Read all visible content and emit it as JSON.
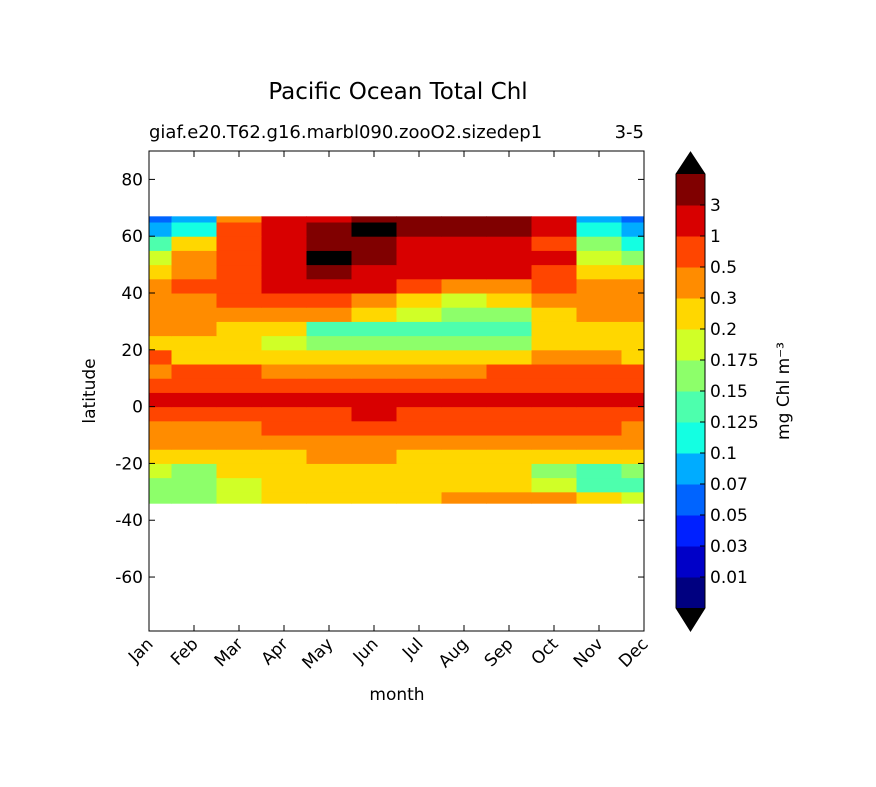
{
  "chart_data": {
    "type": "contour",
    "title": "Pacific Ocean Total Chl",
    "subtitle": "giaf.e20.T62.g16.marbl090.zooO2.sizedep1",
    "subtitle_right": "3-5",
    "xlabel": "month",
    "ylabel": "latitude",
    "categories": [
      "Jan",
      "Feb",
      "Mar",
      "Apr",
      "May",
      "Jun",
      "Jul",
      "Aug",
      "Sep",
      "Oct",
      "Nov",
      "Dec"
    ],
    "ylim": [
      -79,
      90
    ],
    "yticks": [
      -60,
      -40,
      -20,
      0,
      20,
      40,
      60,
      80
    ],
    "lat_edges": [
      -34,
      -30,
      -25,
      -20,
      -15,
      -10,
      -5,
      0,
      5,
      10,
      15,
      20,
      25,
      30,
      35,
      40,
      45,
      50,
      55,
      60,
      65,
      67
    ],
    "z": [
      [
        0.15,
        0.15,
        0.175,
        0.2,
        0.2,
        0.2,
        0.2,
        0.3,
        0.3,
        0.3,
        0.2,
        0.175
      ],
      [
        0.15,
        0.15,
        0.175,
        0.2,
        0.2,
        0.2,
        0.2,
        0.2,
        0.2,
        0.175,
        0.125,
        0.125
      ],
      [
        0.175,
        0.15,
        0.2,
        0.2,
        0.2,
        0.2,
        0.2,
        0.2,
        0.2,
        0.15,
        0.125,
        0.15
      ],
      [
        0.2,
        0.2,
        0.2,
        0.2,
        0.3,
        0.3,
        0.2,
        0.2,
        0.2,
        0.2,
        0.2,
        0.2
      ],
      [
        0.3,
        0.3,
        0.3,
        0.3,
        0.3,
        0.3,
        0.3,
        0.3,
        0.3,
        0.3,
        0.3,
        0.3
      ],
      [
        0.3,
        0.3,
        0.3,
        0.5,
        0.5,
        0.5,
        0.5,
        0.5,
        0.5,
        0.5,
        0.5,
        0.3
      ],
      [
        0.5,
        0.5,
        0.5,
        0.5,
        0.5,
        1,
        0.5,
        0.5,
        0.5,
        0.5,
        0.5,
        0.5
      ],
      [
        1,
        1,
        1,
        1,
        1,
        1,
        1,
        1,
        1,
        1,
        1,
        1
      ],
      [
        0.5,
        0.5,
        0.5,
        0.5,
        0.5,
        0.5,
        0.5,
        0.5,
        0.5,
        0.5,
        0.5,
        0.5
      ],
      [
        0.3,
        0.5,
        0.5,
        0.3,
        0.3,
        0.3,
        0.3,
        0.3,
        0.5,
        0.5,
        0.5,
        0.5
      ],
      [
        0.5,
        0.2,
        0.2,
        0.2,
        0.2,
        0.2,
        0.2,
        0.2,
        0.2,
        0.3,
        0.3,
        0.2
      ],
      [
        0.2,
        0.2,
        0.2,
        0.175,
        0.15,
        0.15,
        0.15,
        0.15,
        0.15,
        0.2,
        0.2,
        0.2
      ],
      [
        0.3,
        0.3,
        0.2,
        0.2,
        0.125,
        0.125,
        0.125,
        0.125,
        0.125,
        0.2,
        0.2,
        0.2
      ],
      [
        0.3,
        0.3,
        0.3,
        0.3,
        0.3,
        0.2,
        0.175,
        0.15,
        0.15,
        0.2,
        0.3,
        0.3
      ],
      [
        0.3,
        0.3,
        0.5,
        0.5,
        0.5,
        0.3,
        0.2,
        0.175,
        0.2,
        0.3,
        0.3,
        0.3
      ],
      [
        0.3,
        0.5,
        0.5,
        1,
        1,
        1,
        0.5,
        0.3,
        0.3,
        0.5,
        0.3,
        0.3
      ],
      [
        0.2,
        0.3,
        0.5,
        1,
        3,
        1,
        1,
        1,
        1,
        0.5,
        0.2,
        0.2
      ],
      [
        0.175,
        0.3,
        0.5,
        1,
        6,
        3,
        1,
        1,
        1,
        1,
        0.175,
        0.15
      ],
      [
        0.125,
        0.2,
        0.5,
        1,
        3,
        3,
        1,
        1,
        1,
        0.5,
        0.15,
        0.1
      ],
      [
        0.07,
        0.1,
        0.5,
        1,
        3,
        6,
        3,
        3,
        3,
        1,
        0.1,
        0.07
      ],
      [
        0.05,
        0.07,
        0.3,
        1,
        1,
        3,
        3,
        3,
        3,
        1,
        0.07,
        0.05
      ]
    ],
    "colorbar": {
      "label": "mg Chl m⁻³",
      "levels": [
        0.01,
        0.03,
        0.05,
        0.07,
        0.1,
        0.125,
        0.15,
        0.175,
        0.2,
        0.3,
        0.5,
        1,
        3
      ],
      "vmax": 5,
      "colors": [
        "#000080",
        "#0000c8",
        "#0020ff",
        "#0064ff",
        "#00acff",
        "#14ffe2",
        "#4dffad",
        "#8dff6a",
        "#d0ff27",
        "#ffd700",
        "#ff8c00",
        "#ff4500",
        "#d80000",
        "#800000"
      ],
      "under_color": "#000000",
      "over_color": "#000000"
    }
  }
}
